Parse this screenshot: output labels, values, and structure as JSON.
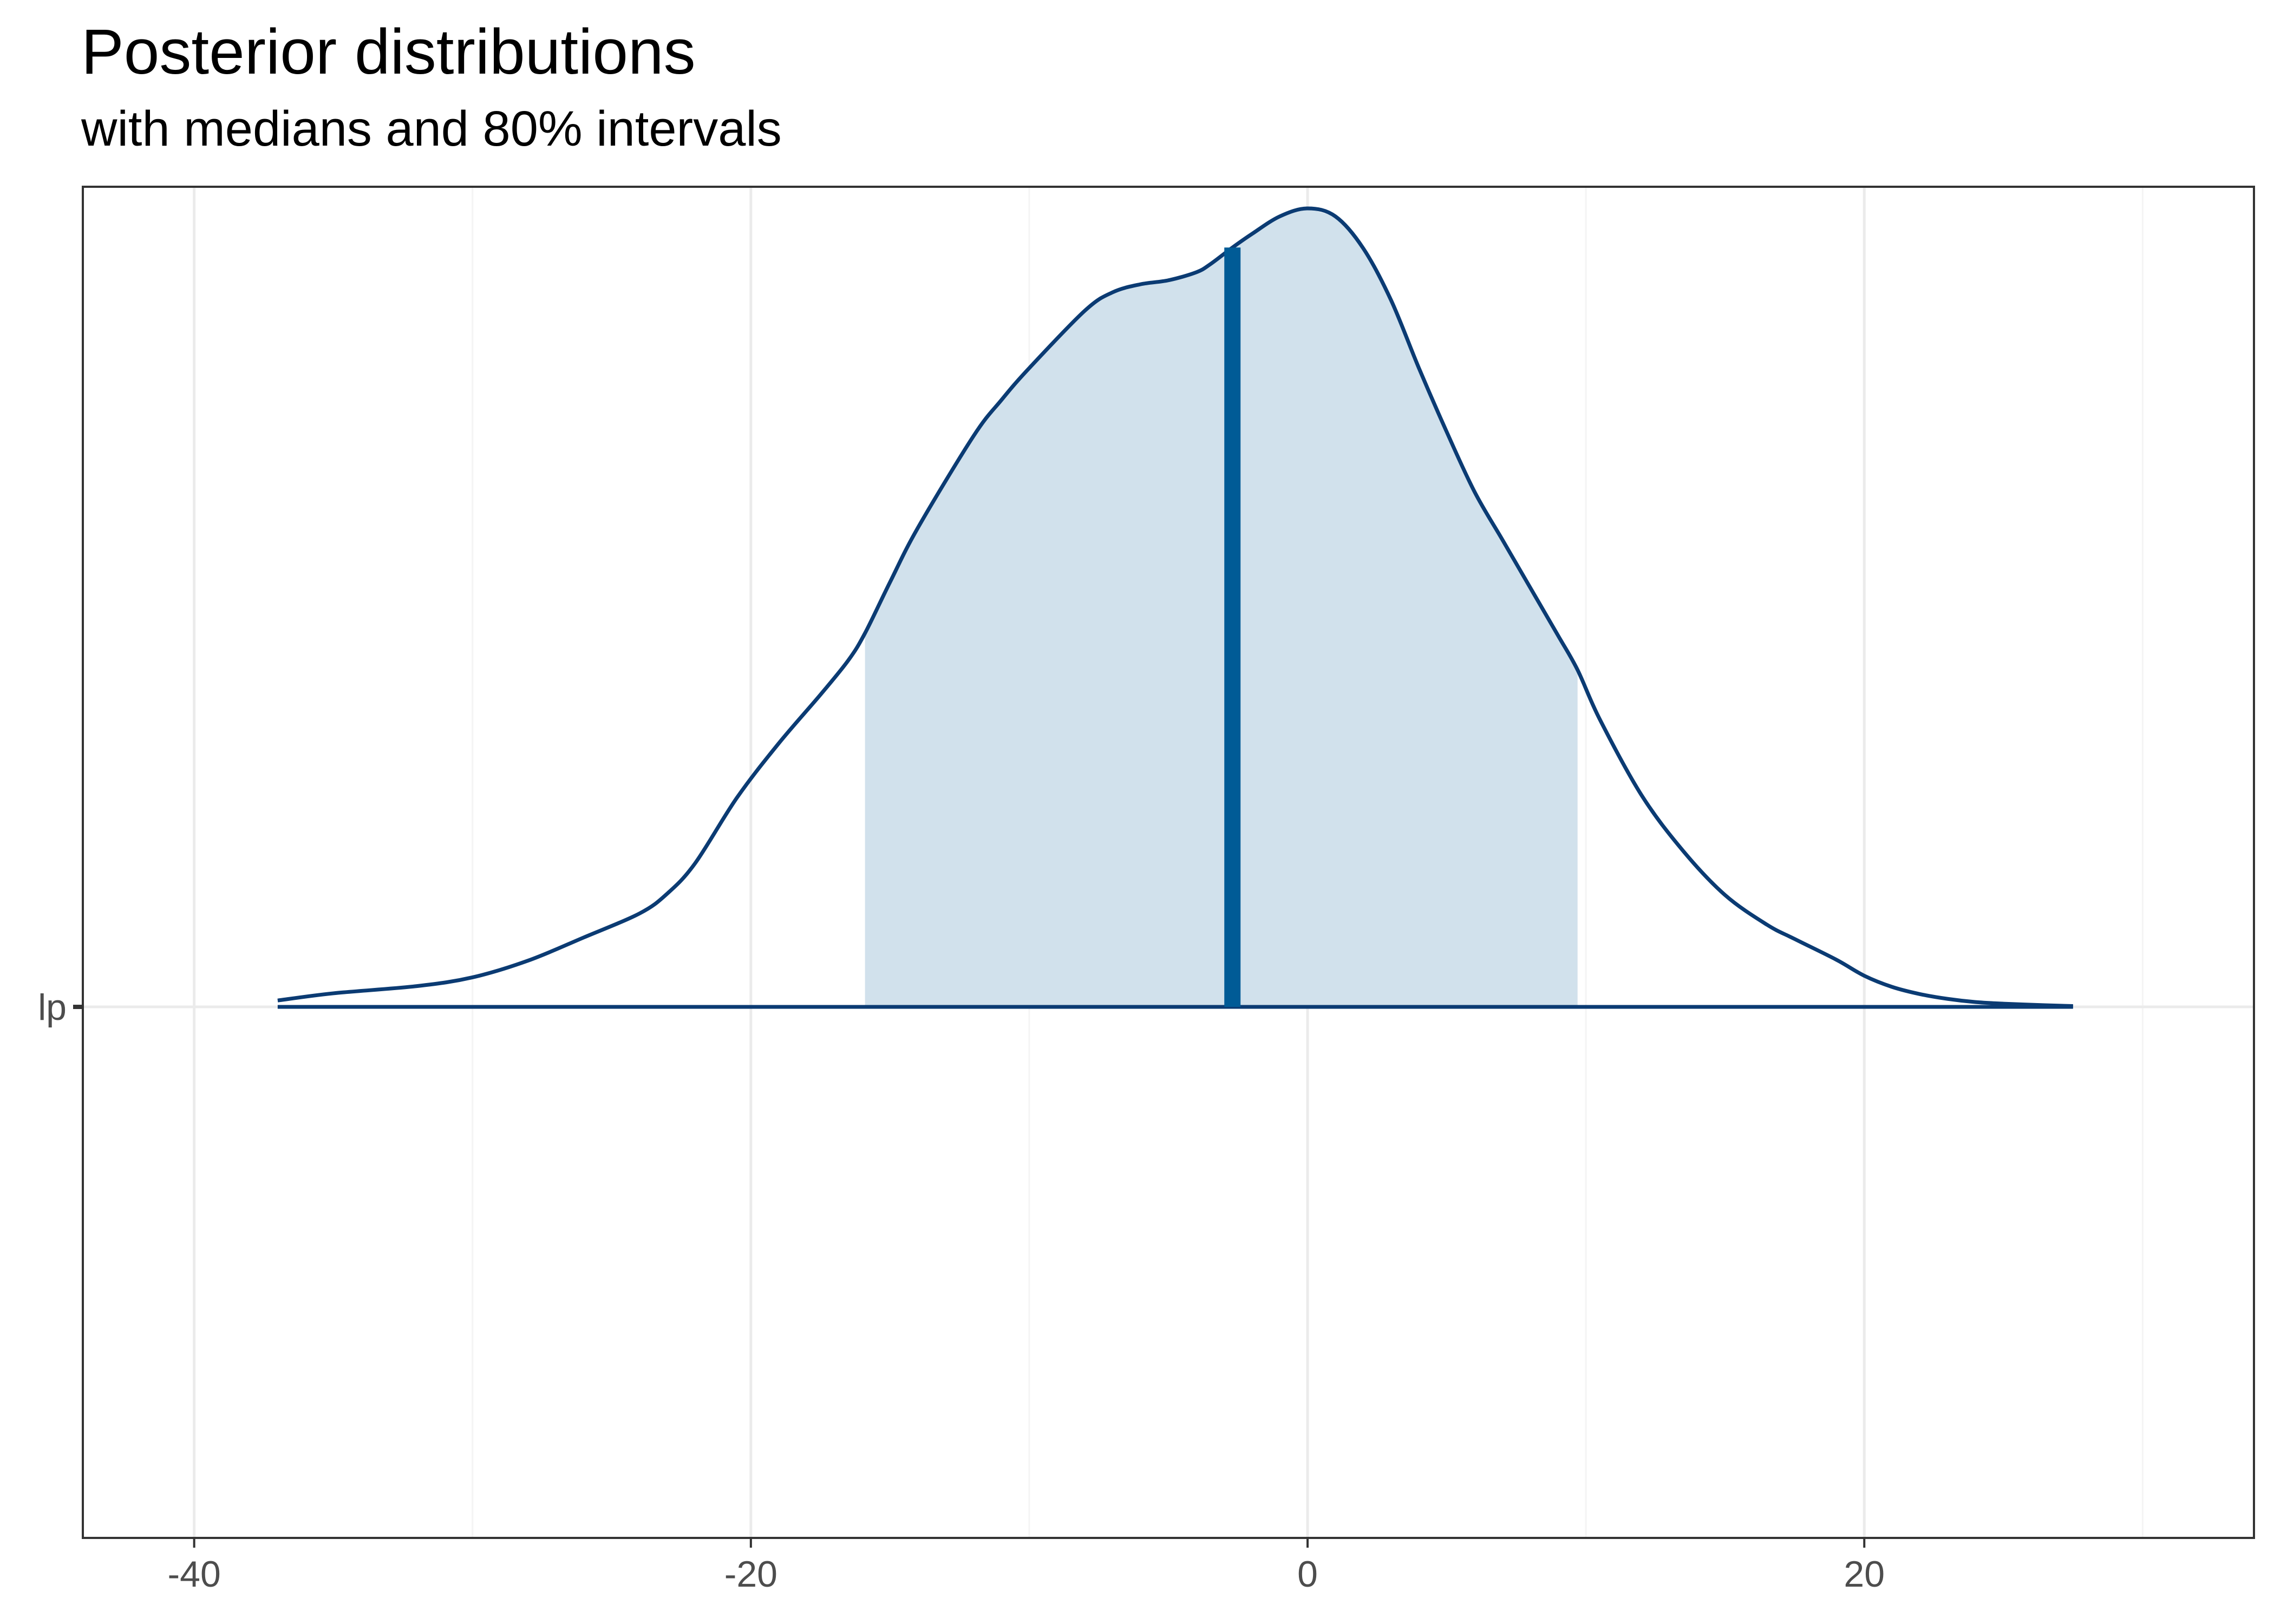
{
  "title": "Posterior distributions",
  "subtitle": "with medians and 80% intervals",
  "colors": {
    "outline": "#0b3b73",
    "interval_fill": "#d1e1ec",
    "median": "#005b96",
    "grid_major": "#ebebeb",
    "grid_minor": "#f4f4f4",
    "panel_border": "#333333"
  },
  "chart_data": {
    "type": "area",
    "description_kind": "posterior density (ridgeline)",
    "parameter": "lp",
    "y_tick_labels": [
      "lp"
    ],
    "x_tick_values": [
      -40,
      -20,
      0,
      20
    ],
    "x_tick_labels": [
      "-40",
      "-20",
      "0",
      "20"
    ],
    "xlim": [
      -44,
      34
    ],
    "grid": true,
    "median": -2.7,
    "interval_80": [
      -15.9,
      9.7
    ],
    "density": {
      "x": [
        -37.0,
        -35.0,
        -32.0,
        -30.0,
        -28.0,
        -26.0,
        -24.0,
        -23.0,
        -22.0,
        -20.5,
        -19.0,
        -17.5,
        -16.5,
        -15.9,
        -15.0,
        -14.0,
        -12.0,
        -11.0,
        -10.0,
        -8.0,
        -7.0,
        -6.0,
        -5.0,
        -4.0,
        -3.5,
        -2.7,
        -2.0,
        -1.0,
        0.0,
        1.0,
        2.0,
        3.0,
        4.0,
        5.0,
        6.0,
        7.0,
        8.0,
        9.0,
        9.7,
        10.5,
        12.0,
        13.5,
        15.0,
        16.5,
        17.5,
        19.0,
        20.0,
        21.0,
        22.0,
        23.0,
        24.0,
        25.0,
        26.5,
        27.5
      ],
      "density": [
        0.008,
        0.017,
        0.026,
        0.037,
        0.058,
        0.087,
        0.117,
        0.142,
        0.18,
        0.262,
        0.33,
        0.391,
        0.434,
        0.468,
        0.532,
        0.6,
        0.715,
        0.76,
        0.8,
        0.872,
        0.895,
        0.905,
        0.91,
        0.92,
        0.93,
        0.951,
        0.968,
        0.99,
        1.0,
        0.99,
        0.95,
        0.885,
        0.8,
        0.72,
        0.645,
        0.585,
        0.525,
        0.465,
        0.422,
        0.36,
        0.265,
        0.195,
        0.14,
        0.103,
        0.085,
        0.059,
        0.039,
        0.025,
        0.016,
        0.01,
        0.006,
        0.004,
        0.002,
        0.001
      ]
    }
  }
}
